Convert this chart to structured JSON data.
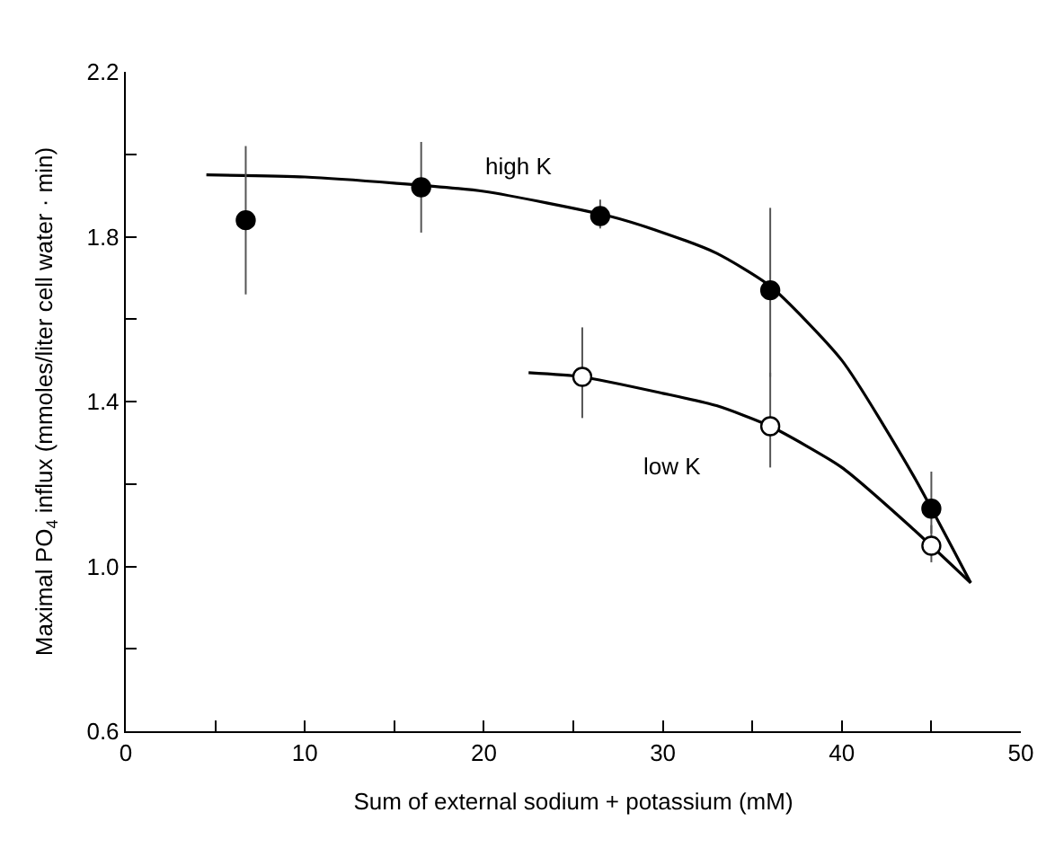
{
  "chart_data": {
    "type": "scatter",
    "xlabel": "Sum of external sodium + potassium (mM)",
    "ylabel": "Maximal PO$_{4}$ influx (mmoles/liter cell water · min)",
    "xlim": [
      0,
      50
    ],
    "xticks": [
      0,
      {
        "value": 5,
        "label": null
      },
      10,
      {
        "value": 15,
        "label": null
      },
      20,
      {
        "value": 25,
        "label": null
      },
      30,
      {
        "value": 35,
        "label": null
      },
      40,
      {
        "value": 45,
        "label": null
      },
      50
    ],
    "ylim": [
      0.6,
      2.2
    ],
    "yticks": [
      {
        "value": 0.6,
        "label": "0.6"
      },
      {
        "value": 0.8,
        "label": null
      },
      {
        "value": 1.0,
        "label": "1.0"
      },
      {
        "value": 1.2,
        "label": null
      },
      {
        "value": 1.4,
        "label": "1.4"
      },
      {
        "value": 1.6,
        "label": null
      },
      {
        "value": 1.8,
        "label": "1.8"
      },
      {
        "value": 2.0,
        "label": null
      },
      {
        "value": 2.2,
        "label": "2.2"
      }
    ],
    "series": [
      {
        "type": "line",
        "color": "#000000",
        "marker": "none",
        "x": [
          4.5,
          10,
          15,
          20,
          27,
          30,
          33,
          36,
          40,
          44,
          47.2
        ],
        "values": [
          1.95,
          1.945,
          1.93,
          1.91,
          1.85,
          1.81,
          1.76,
          1.68,
          1.5,
          1.22,
          0.96
        ]
      },
      {
        "type": "line",
        "color": "#000000",
        "marker": "none",
        "x": [
          22.5,
          25.5,
          30,
          33,
          36,
          40,
          44,
          47.2
        ],
        "values": [
          1.47,
          1.46,
          1.42,
          1.39,
          1.34,
          1.24,
          1.09,
          0.96
        ]
      },
      {
        "name": "high K",
        "color": "#000000",
        "marker": "circle",
        "x": [
          6.7,
          16.5,
          26.5,
          36,
          45
        ],
        "values": [
          1.84,
          1.92,
          1.85,
          1.67,
          1.14
        ],
        "errors": [
          [
            1.66,
            2.02
          ],
          [
            1.81,
            2.03
          ],
          [
            1.82,
            1.89
          ],
          [
            1.46,
            1.87
          ],
          [
            1.08,
            1.23
          ]
        ]
      },
      {
        "name": "low K",
        "color": "#ffffff",
        "marker": "circle",
        "x": [
          25.5,
          36,
          45
        ],
        "values": [
          1.46,
          1.34,
          1.05
        ],
        "errors": [
          [
            1.36,
            1.58
          ],
          [
            1.24,
            1.47
          ],
          [
            1.01,
            1.1
          ]
        ]
      }
    ]
  }
}
